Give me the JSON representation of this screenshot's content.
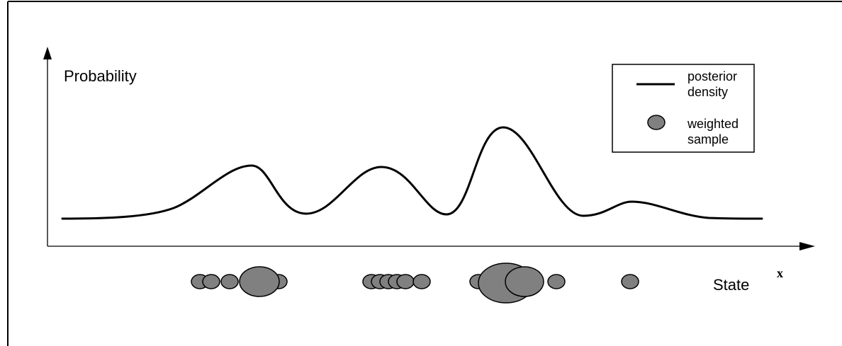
{
  "diagram": {
    "y_axis_label": "Probability",
    "x_axis_label": "State",
    "x_symbol": "x",
    "legend": {
      "posterior_label_line1": "posterior",
      "posterior_label_line2": "density",
      "sample_label_line1": "weighted",
      "sample_label_line2": "sample"
    },
    "colors": {
      "sample_fill": "#808080",
      "stroke": "#000000",
      "background": "#ffffff"
    }
  }
}
